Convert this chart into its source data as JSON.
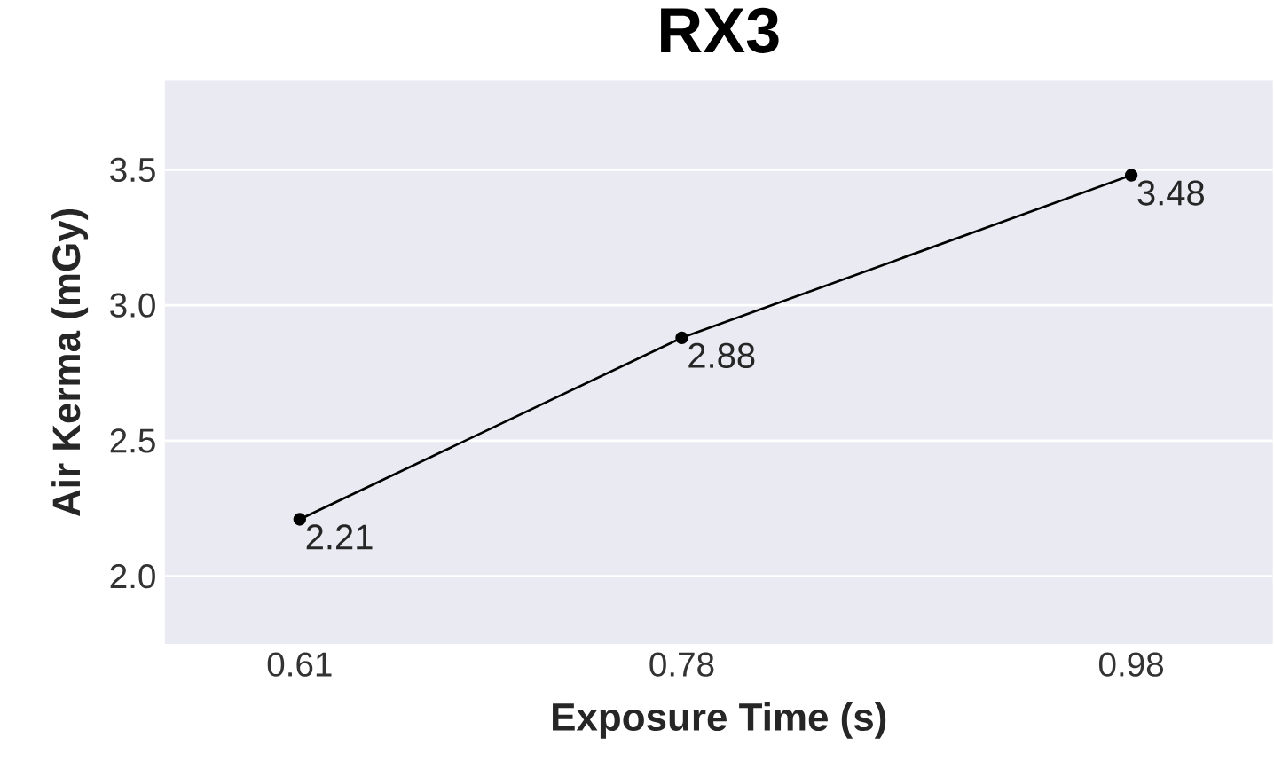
{
  "chart_data": {
    "type": "line",
    "title": "RX3",
    "xlabel": "Exposure Time (s)",
    "ylabel": "Air Kerma (mGy)",
    "x": [
      0.61,
      0.78,
      0.98
    ],
    "values": [
      2.21,
      2.88,
      3.48
    ],
    "color": "#000000",
    "data_labels": true,
    "marker": "circle",
    "line_style": "solid",
    "grid": "y",
    "xlim": [
      0.55,
      1.043
    ],
    "ylim": [
      1.75,
      3.83
    ],
    "xticks": [
      0.61,
      0.78,
      0.98
    ],
    "yticks": [
      {
        "value": 2,
        "label": "2.0"
      },
      {
        "value": 2.5,
        "label": "2.5"
      },
      {
        "value": 3,
        "label": "3.0"
      },
      {
        "value": 3.5,
        "label": "3.5"
      }
    ]
  }
}
